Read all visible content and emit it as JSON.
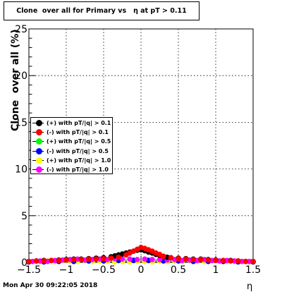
{
  "footer": {
    "timestamp": "Mon Apr 30 09:22:05 2018"
  },
  "chart_data": {
    "type": "scatter",
    "title": "Clone  over all for Primary vs   η at pT > 0.11",
    "xlabel": "η",
    "ylabel": "Clone  over all (%)",
    "xlim": [
      -1.5,
      1.5
    ],
    "ylim": [
      0,
      25
    ],
    "xticks": [
      -1.5,
      -1,
      -0.5,
      0,
      0.5,
      1,
      1.5
    ],
    "xtick_labels": [
      "−1.5",
      "−1",
      "−0.5",
      "0",
      "0.5",
      "1",
      "1.5"
    ],
    "yticks": [
      0,
      5,
      10,
      15,
      20,
      25
    ],
    "ytick_labels": [
      "0",
      "5",
      "10",
      "15",
      "20",
      "25"
    ],
    "grid": true,
    "legend_position": "middle-left",
    "series": [
      {
        "name": "(+) with pT/|q| > 0.1",
        "color": "#000000",
        "x": [
          -1.5,
          -1.4,
          -1.3,
          -1.2,
          -1.1,
          -1.0,
          -0.9,
          -0.8,
          -0.7,
          -0.6,
          -0.5,
          -0.4,
          -0.35,
          -0.3,
          -0.25,
          -0.2,
          -0.15,
          -0.1,
          -0.05,
          0.0,
          0.05,
          0.1,
          0.15,
          0.2,
          0.25,
          0.3,
          0.35,
          0.4,
          0.5,
          0.6,
          0.7,
          0.8,
          0.9,
          1.0,
          1.1,
          1.2,
          1.3,
          1.4,
          1.5
        ],
        "y": [
          0.1,
          0.15,
          0.2,
          0.2,
          0.25,
          0.3,
          0.35,
          0.35,
          0.4,
          0.45,
          0.5,
          0.6,
          0.7,
          0.8,
          0.9,
          1.0,
          1.1,
          1.2,
          1.3,
          1.35,
          1.25,
          1.1,
          1.0,
          0.85,
          0.75,
          0.65,
          0.55,
          0.5,
          0.45,
          0.4,
          0.35,
          0.35,
          0.3,
          0.25,
          0.2,
          0.2,
          0.15,
          0.1,
          0.1
        ]
      },
      {
        "name": "(-) with pT/|q| > 0.1",
        "color": "#ff0000",
        "x": [
          -1.5,
          -1.4,
          -1.3,
          -1.2,
          -1.1,
          -1.0,
          -0.9,
          -0.8,
          -0.7,
          -0.6,
          -0.5,
          -0.4,
          -0.3,
          -0.2,
          -0.15,
          -0.1,
          -0.05,
          0.0,
          0.05,
          0.1,
          0.15,
          0.2,
          0.25,
          0.3,
          0.4,
          0.5,
          0.6,
          0.7,
          0.8,
          0.9,
          1.0,
          1.1,
          1.2,
          1.3,
          1.4,
          1.5
        ],
        "y": [
          0.1,
          0.15,
          0.15,
          0.2,
          0.2,
          0.25,
          0.3,
          0.3,
          0.35,
          0.35,
          0.4,
          0.45,
          0.55,
          0.8,
          1.0,
          1.2,
          1.4,
          1.6,
          1.5,
          1.35,
          1.2,
          1.0,
          0.85,
          0.65,
          0.5,
          0.4,
          0.35,
          0.3,
          0.3,
          0.25,
          0.2,
          0.2,
          0.15,
          0.15,
          0.1,
          0.1
        ]
      },
      {
        "name": "(+) with pT/|q| > 0.5",
        "color": "#00ff00",
        "x": [
          -1.5,
          -1.3,
          -1.1,
          -0.9,
          -0.7,
          -0.5,
          -0.3,
          -0.1,
          0.1,
          0.3,
          0.5,
          0.7,
          0.9,
          1.1,
          1.3,
          1.5
        ],
        "y": [
          0.05,
          0.1,
          0.1,
          0.15,
          0.15,
          0.2,
          0.2,
          0.25,
          0.25,
          0.2,
          0.2,
          0.15,
          0.15,
          0.1,
          0.1,
          0.05
        ]
      },
      {
        "name": "(-) with pT/|q| > 0.5",
        "color": "#0000ff",
        "x": [
          -1.5,
          -1.3,
          -1.1,
          -0.9,
          -0.7,
          -0.5,
          -0.3,
          -0.1,
          0.1,
          0.3,
          0.5,
          0.7,
          0.9,
          1.1,
          1.3,
          1.5
        ],
        "y": [
          0.05,
          0.05,
          0.1,
          0.1,
          0.15,
          0.15,
          0.2,
          0.2,
          0.2,
          0.15,
          0.15,
          0.1,
          0.1,
          0.1,
          0.05,
          0.05
        ]
      },
      {
        "name": "(+) with pT/|q| > 1.0",
        "color": "#ffff00",
        "x": [
          -1.45,
          -1.35,
          -1.25,
          -1.15,
          -1.05,
          -0.95,
          -0.85,
          -0.75,
          -0.65,
          -0.55,
          -0.45,
          -0.35,
          -0.25,
          -0.15,
          -0.05,
          0.05,
          0.15,
          0.25,
          0.35,
          0.45,
          0.55,
          0.65,
          0.75,
          0.85,
          0.95,
          1.05,
          1.15,
          1.25,
          1.35,
          1.45
        ],
        "y": [
          0.1,
          0.1,
          0.15,
          0.1,
          0.2,
          0.15,
          0.1,
          0.2,
          0.1,
          0.15,
          0.1,
          0.05,
          0.1,
          0.05,
          0.1,
          0.1,
          0.05,
          0.15,
          0.1,
          0.15,
          0.1,
          0.2,
          0.15,
          0.1,
          0.2,
          0.15,
          0.1,
          0.15,
          0.1,
          0.05
        ]
      },
      {
        "name": "(-) with pT/|q| > 1.0",
        "color": "#ff00ff",
        "x": [
          -1.45,
          -1.35,
          -1.25,
          -1.15,
          -1.05,
          -0.95,
          -0.85,
          -0.75,
          -0.65,
          -0.55,
          -0.45,
          -0.35,
          -0.25,
          -0.15,
          -0.05,
          0.05,
          0.15,
          0.25,
          0.35,
          0.45,
          0.55,
          0.65,
          0.75,
          0.85,
          0.95,
          1.05,
          1.15,
          1.25,
          1.35,
          1.45
        ],
        "y": [
          0.1,
          0.15,
          0.1,
          0.2,
          0.25,
          0.3,
          0.35,
          0.25,
          0.3,
          0.35,
          0.3,
          0.4,
          0.35,
          0.35,
          0.3,
          0.35,
          0.3,
          0.3,
          0.25,
          0.3,
          0.2,
          0.25,
          0.2,
          0.3,
          0.2,
          0.15,
          0.2,
          0.15,
          0.1,
          0.1
        ]
      }
    ]
  }
}
